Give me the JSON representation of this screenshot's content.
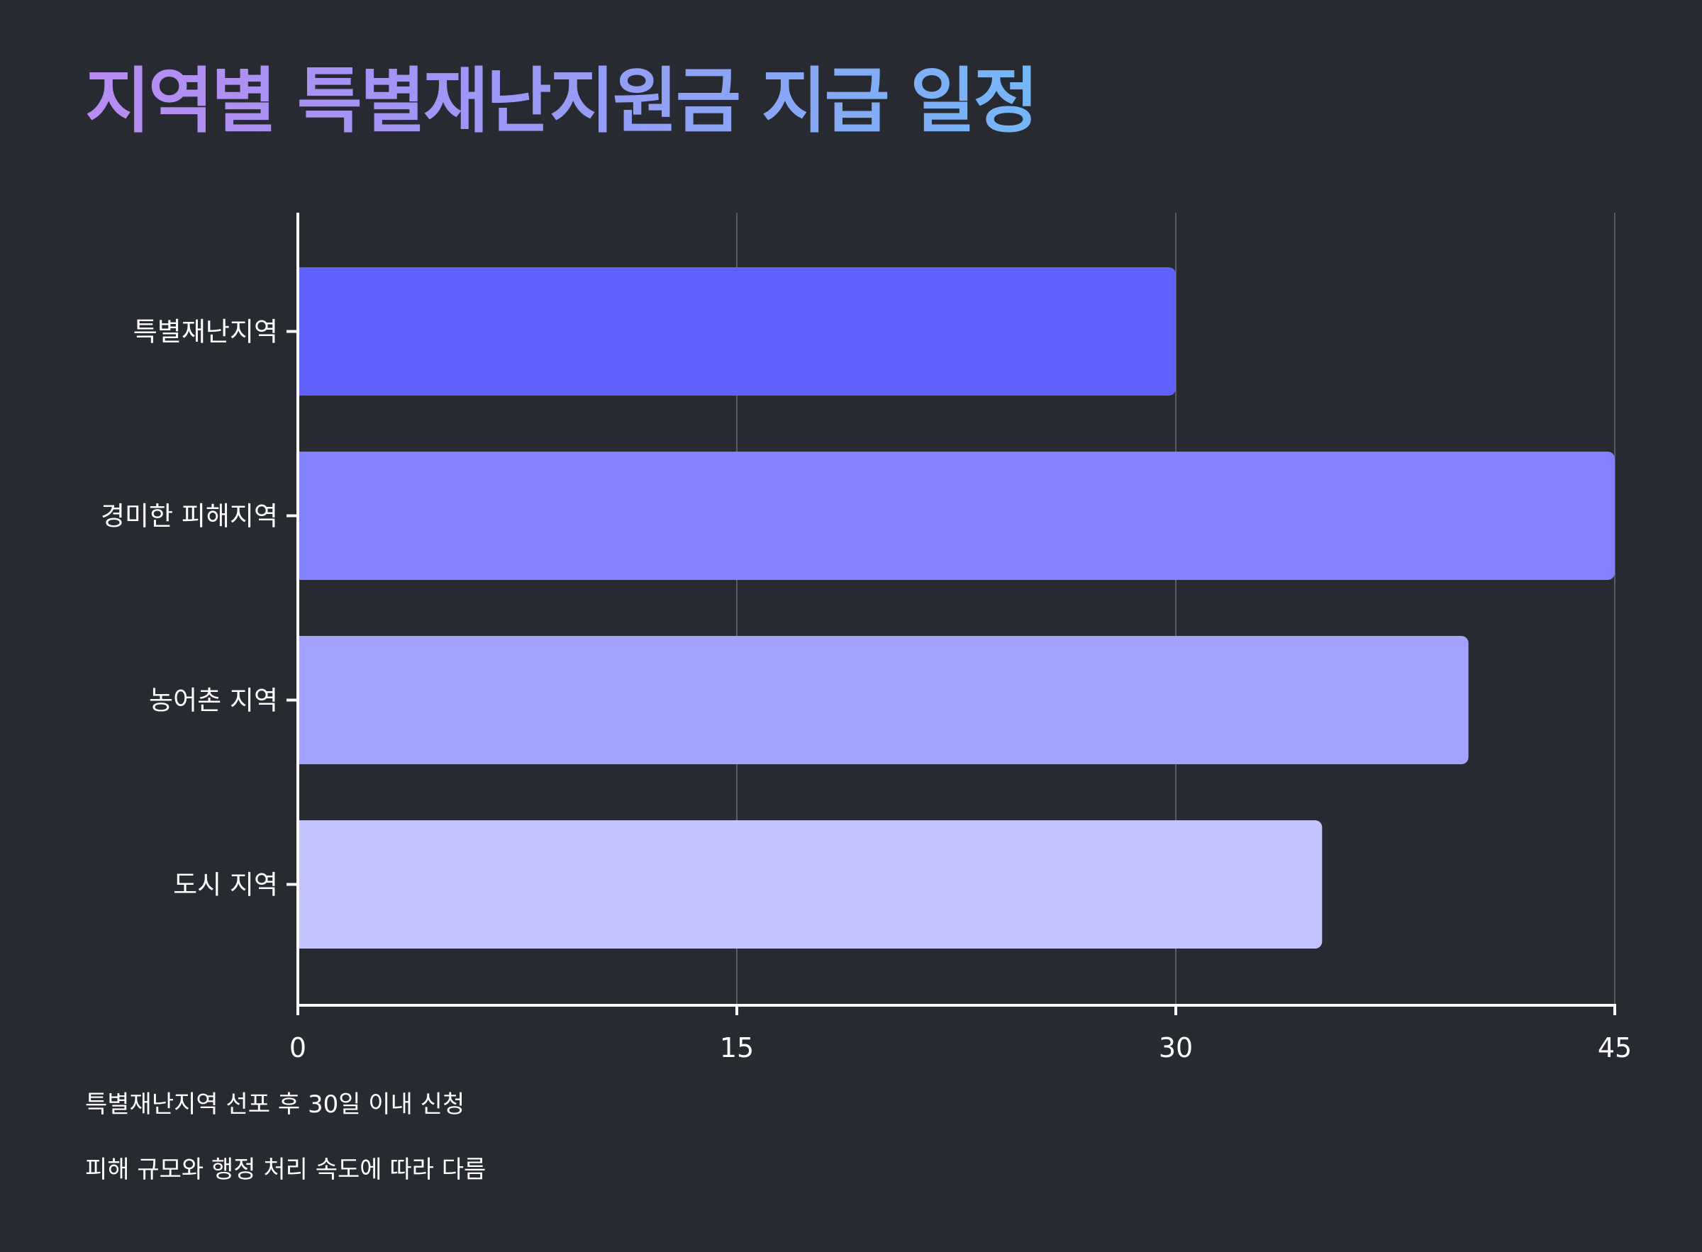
{
  "title": "지역별 특별재난지원금 지급 일정",
  "chart_data": {
    "type": "bar",
    "orientation": "horizontal",
    "title": "지역별 특별재난지원금 지급 일정",
    "categories": [
      "특별재난지역",
      "경미한 피해지역",
      "농어촌 지역",
      "도시 지역"
    ],
    "values": [
      30,
      45,
      40,
      35
    ],
    "xlim": [
      0,
      45
    ],
    "xticks": [
      0,
      15,
      30,
      45
    ],
    "grid": true,
    "colors": [
      "#6161ff",
      "#8282ff",
      "#a2a2ff",
      "#c4c4ff"
    ]
  },
  "footnotes": [
    "특별재난지역 선포 후 30일 이내 신청",
    "피해 규모와 행정 처리 속도에 따라 다름"
  ],
  "colors": {
    "background": "#282a32",
    "grid": "#5a5c63",
    "axis": "#ffffff"
  }
}
